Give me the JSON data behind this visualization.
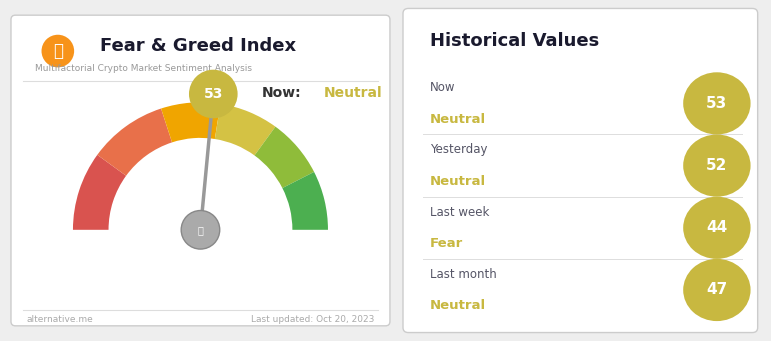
{
  "title": "Fear & Greed Index",
  "subtitle": "Multifactorial Crypto Market Sentiment Analysis",
  "current_value": 53,
  "current_label": "Neutral",
  "footer_left": "alternative.me",
  "footer_right": "Last updated: Oct 20, 2023",
  "historical_title": "Historical Values",
  "historical": [
    {
      "period": "Now",
      "sentiment": "Neutral",
      "value": 53
    },
    {
      "period": "Yesterday",
      "sentiment": "Neutral",
      "value": 52
    },
    {
      "period": "Last week",
      "sentiment": "Fear",
      "value": 44
    },
    {
      "period": "Last month",
      "sentiment": "Neutral",
      "value": 47
    }
  ],
  "gauge_colors": [
    "#d9534f",
    "#e8704a",
    "#f0a500",
    "#d4c244",
    "#8fbc3a",
    "#4caf50"
  ],
  "gauge_breaks": [
    0,
    20,
    40,
    55,
    70,
    85,
    100
  ],
  "needle_color": "#999999",
  "needle_base_color": "#aaaaaa",
  "value_bubble_color": "#c8b840",
  "value_text_color": "#ffffff",
  "sentiment_color": "#c8b840",
  "period_color": "#555566",
  "historical_circle_color": "#c8b840",
  "historical_text_color": "#ffffff",
  "title_color": "#1a1a2e",
  "subtitle_color": "#999999",
  "footer_color": "#aaaaaa",
  "now_label_color": "#333333",
  "bg_color": "#eeeeee",
  "card_color": "#ffffff",
  "divider_color": "#dddddd",
  "bitcoin_color": "#f7931a"
}
